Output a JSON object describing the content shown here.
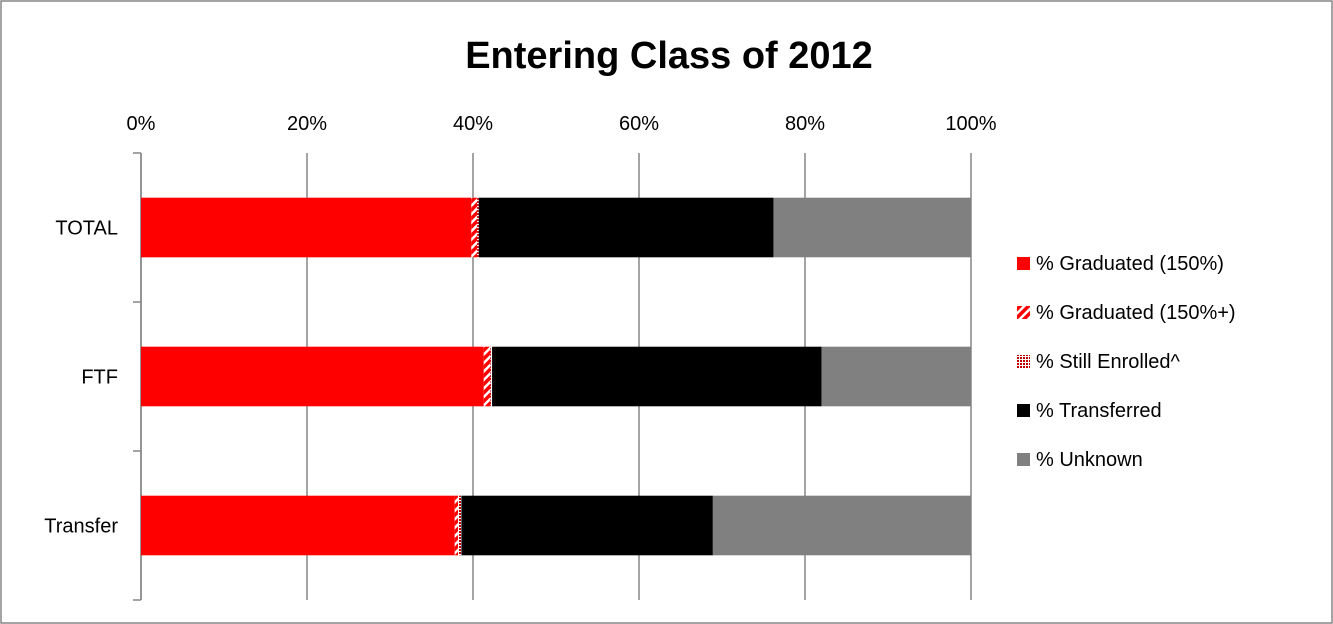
{
  "chart_data": {
    "type": "bar",
    "orientation": "horizontal",
    "stacked": true,
    "percent_stacked": true,
    "title": "Entering Class of 2012",
    "xlabel": "",
    "ylabel": "",
    "x_axis_position": "top",
    "xlim": [
      0,
      100
    ],
    "x_ticks": [
      "0%",
      "20%",
      "40%",
      "60%",
      "80%",
      "100%"
    ],
    "grid": "vertical",
    "legend_position": "right",
    "categories": [
      "TOTAL",
      "FTF",
      "Transfer"
    ],
    "series": [
      {
        "name": "% Graduated (150%)",
        "values": [
          39.8,
          41.3,
          37.8
        ],
        "color": "#ff0000",
        "pattern": "solid"
      },
      {
        "name": "% Graduated (150%+)",
        "values": [
          0.7,
          0.8,
          0.4
        ],
        "color": "#ff0000",
        "pattern": "diagonal-hatch"
      },
      {
        "name": "% Still Enrolled^",
        "values": [
          0.2,
          0.2,
          0.4
        ],
        "color": "#c00000",
        "pattern": "dots"
      },
      {
        "name": "% Transferred",
        "values": [
          35.5,
          39.7,
          30.3
        ],
        "color": "#000000",
        "pattern": "solid"
      },
      {
        "name": "% Unknown",
        "values": [
          23.8,
          18.0,
          31.1
        ],
        "color": "#808080",
        "pattern": "solid"
      }
    ]
  }
}
